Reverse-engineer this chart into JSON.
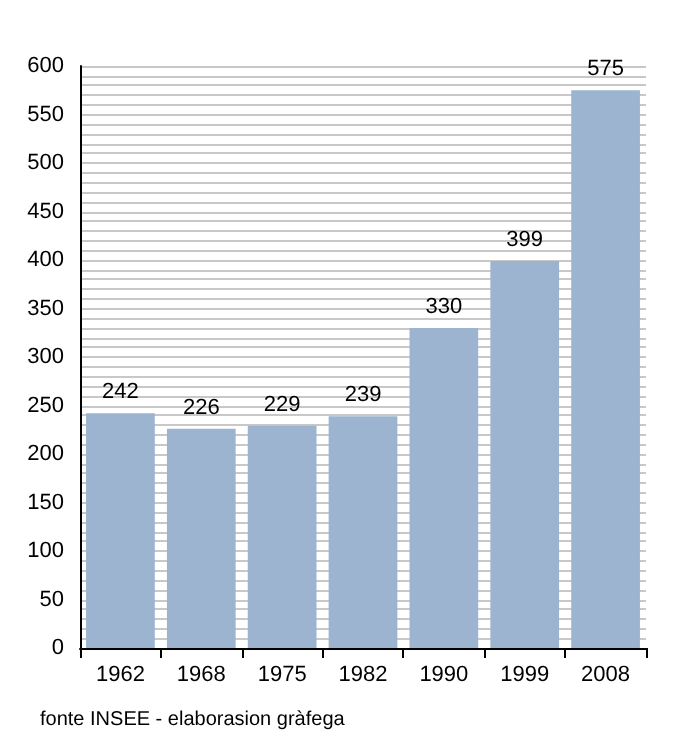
{
  "chart_data": {
    "type": "bar",
    "categories": [
      "1962",
      "1968",
      "1975",
      "1982",
      "1990",
      "1999",
      "2008"
    ],
    "values": [
      242,
      226,
      229,
      239,
      330,
      399,
      575
    ],
    "color": "#9cb4cf",
    "ylim": [
      0,
      600
    ],
    "yticks": [
      0,
      {
        "value": 10,
        "label": null
      },
      {
        "value": 20,
        "label": null
      },
      {
        "value": 30,
        "label": null
      },
      {
        "value": 40,
        "label": null
      },
      50,
      {
        "value": 60,
        "label": null
      },
      {
        "value": 70,
        "label": null
      },
      {
        "value": 80,
        "label": null
      },
      {
        "value": 90,
        "label": null
      },
      100,
      {
        "value": 110,
        "label": null
      },
      {
        "value": 120,
        "label": null
      },
      {
        "value": 130,
        "label": null
      },
      {
        "value": 140,
        "label": null
      },
      150,
      {
        "value": 160,
        "label": null
      },
      {
        "value": 170,
        "label": null
      },
      {
        "value": 180,
        "label": null
      },
      {
        "value": 190,
        "label": null
      },
      200,
      {
        "value": 210,
        "label": null
      },
      {
        "value": 220,
        "label": null
      },
      {
        "value": 230,
        "label": null
      },
      {
        "value": 240,
        "label": null
      },
      250,
      {
        "value": 260,
        "label": null
      },
      {
        "value": 270,
        "label": null
      },
      {
        "value": 280,
        "label": null
      },
      {
        "value": 290,
        "label": null
      },
      300,
      {
        "value": 310,
        "label": null
      },
      {
        "value": 320,
        "label": null
      },
      {
        "value": 330,
        "label": null
      },
      {
        "value": 340,
        "label": null
      },
      350,
      {
        "value": 360,
        "label": null
      },
      {
        "value": 370,
        "label": null
      },
      {
        "value": 380,
        "label": null
      },
      {
        "value": 390,
        "label": null
      },
      400,
      {
        "value": 410,
        "label": null
      },
      {
        "value": 420,
        "label": null
      },
      {
        "value": 430,
        "label": null
      },
      {
        "value": 440,
        "label": null
      },
      450,
      {
        "value": 460,
        "label": null
      },
      {
        "value": 470,
        "label": null
      },
      {
        "value": 480,
        "label": null
      },
      {
        "value": 490,
        "label": null
      },
      500,
      {
        "value": 510,
        "label": null
      },
      {
        "value": 520,
        "label": null
      },
      {
        "value": 530,
        "label": null
      },
      {
        "value": 540,
        "label": null
      },
      550,
      {
        "value": 560,
        "label": null
      },
      {
        "value": 570,
        "label": null
      },
      {
        "value": 580,
        "label": null
      },
      {
        "value": 590,
        "label": null
      },
      600
    ],
    "grid": "y",
    "data_labels": true,
    "annotations": [
      "fonte INSEE - elaborasion gràfega"
    ]
  }
}
